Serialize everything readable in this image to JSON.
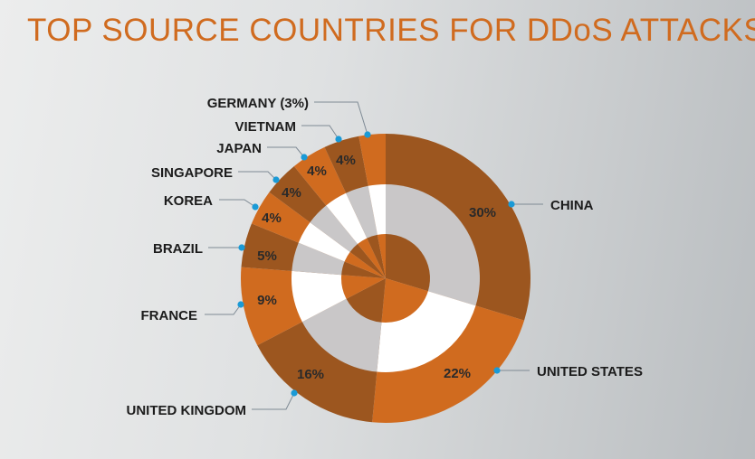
{
  "chart_data": {
    "type": "pie",
    "variant": "donut",
    "title": "TOP SOURCE COUNTRIES FOR DDoS ATTACKS",
    "categories": [
      "CHINA",
      "UNITED STATES",
      "UNITED KINGDOM",
      "FRANCE",
      "BRAZIL",
      "KOREA",
      "SINGAPORE",
      "JAPAN",
      "VIETNAM",
      "GERMANY"
    ],
    "values": [
      30,
      22,
      16,
      9,
      5,
      4,
      4,
      4,
      4,
      3
    ],
    "data_labels": [
      "30%",
      "22%",
      "16%",
      "9%",
      "5%",
      "4%",
      "4%",
      "4%",
      "4%",
      ""
    ],
    "category_labels": [
      "CHINA",
      "UNITED STATES",
      "UNITED KINGDOM",
      "FRANCE",
      "BRAZIL",
      "KOREA",
      "SINGAPORE",
      "JAPAN",
      "VIETNAM",
      "GERMANY (3%)"
    ],
    "colors": {
      "dark": "#9c561f",
      "light": "#d06b1f",
      "gray": "#c9c7c8",
      "white": "#ffffff",
      "title": "#d06b1f",
      "leader_dot": "#1a9ad6",
      "leader_line": "#7e8a94"
    }
  }
}
